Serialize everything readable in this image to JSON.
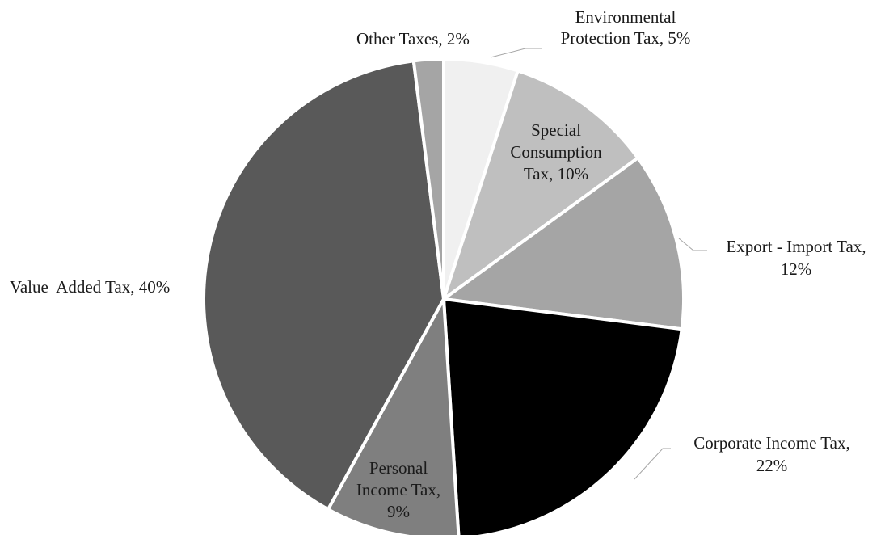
{
  "chart_data": {
    "type": "pie",
    "slices": [
      {
        "name": "Environmental Protection Tax",
        "value": 5,
        "label_lines": [
          "Environmental",
          "Protection Tax, 5%"
        ],
        "color": "#f0f0f0"
      },
      {
        "name": "Special Consumption Tax",
        "value": 10,
        "label_lines": [
          "Special",
          "Consumption",
          "Tax, 10%"
        ],
        "color": "#bfbfbf"
      },
      {
        "name": "Export - Import Tax",
        "value": 12,
        "label_lines": [
          "Export - Import Tax,",
          "12%"
        ],
        "color": "#a5a5a5"
      },
      {
        "name": "Corporate Income Tax",
        "value": 22,
        "label_lines": [
          "Corporate Income Tax,",
          "22%"
        ],
        "color": "#000000"
      },
      {
        "name": "Personal Income Tax",
        "value": 9,
        "label_lines": [
          "Personal",
          "Income Tax,",
          "9%"
        ],
        "color": "#7f7f7f"
      },
      {
        "name": "Value Added Tax",
        "value": 40,
        "label_lines": [
          "Value  Added Tax, 40%"
        ],
        "color": "#595959"
      },
      {
        "name": "Other Taxes",
        "value": 2,
        "label_lines": [
          "Other Taxes, 2%"
        ],
        "color": "#a5a5a5"
      }
    ],
    "start_angle_deg": 0,
    "direction": "clockwise",
    "legend": "none"
  }
}
